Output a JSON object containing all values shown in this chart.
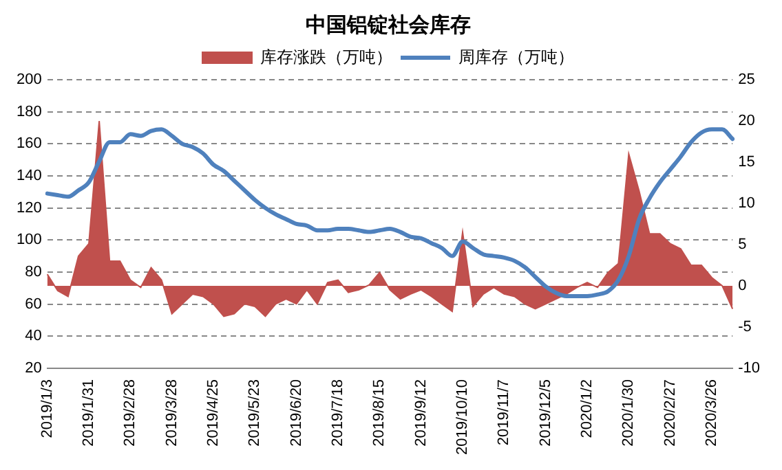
{
  "chart_data": {
    "type": "line",
    "title": "中国铝锭社会库存",
    "categories": [
      "2019/1/3",
      null,
      null,
      null,
      "2019/1/31",
      null,
      null,
      null,
      "2019/2/28",
      null,
      null,
      null,
      "2019/3/28",
      null,
      null,
      null,
      "2019/4/25",
      null,
      null,
      null,
      "2019/5/23",
      null,
      null,
      null,
      "2019/6/20",
      null,
      null,
      null,
      "2019/7/18",
      null,
      null,
      null,
      "2019/8/15",
      null,
      null,
      null,
      "2019/9/12",
      null,
      null,
      null,
      "2019/10/10",
      null,
      null,
      null,
      "2019/11/7",
      null,
      null,
      null,
      "2019/12/5",
      null,
      null,
      null,
      "2020/1/2",
      null,
      null,
      null,
      "2020/1/30",
      null,
      null,
      null,
      "2020/2/27",
      null,
      null,
      null,
      "2020/3/26",
      null,
      null
    ],
    "series": [
      {
        "name": "库存涨跌（万吨）",
        "type": "area",
        "axis": "y2",
        "color": "#c0504d",
        "values": [
          1.4,
          -0.6,
          -1.3,
          3.6,
          5.1,
          20,
          3,
          3,
          0.7,
          -0.2,
          2.2,
          0.7,
          -3.4,
          -2.2,
          -1,
          -1.3,
          -2.2,
          -3.7,
          -3.4,
          -2.2,
          -2.5,
          -3.7,
          -2.2,
          -1.6,
          -2.2,
          -0.5,
          -2.2,
          0.4,
          0.7,
          -0.8,
          -0.5,
          0.1,
          1.6,
          -0.5,
          -1.6,
          -1,
          -0.5,
          -1.3,
          -2.2,
          -3.1,
          6.5,
          -2.5,
          -1,
          -0.2,
          -1,
          -1.3,
          -2.2,
          -2.8,
          -2.2,
          -1.6,
          -1,
          -0.2,
          0.4,
          -0.2,
          1.6,
          2.7,
          16,
          11.5,
          6.3,
          6.3,
          5.1,
          4.5,
          2.5,
          2.5,
          1,
          0,
          -2.8
        ]
      },
      {
        "name": "周库存（万吨）",
        "type": "line",
        "axis": "y",
        "color": "#4f81bd",
        "values": [
          129,
          128,
          127,
          131,
          136,
          149,
          161,
          161,
          166,
          165,
          168,
          169,
          165,
          160,
          158,
          154,
          147,
          143,
          137,
          131,
          125,
          120,
          116,
          113,
          110,
          109,
          106,
          106,
          107,
          107,
          106,
          105,
          106,
          107,
          105,
          102,
          101,
          98,
          95,
          90,
          99,
          95,
          91,
          90,
          89,
          87,
          83,
          77,
          71,
          67,
          65,
          65,
          65,
          66,
          68,
          75,
          90,
          113,
          126,
          136,
          144,
          152,
          161,
          167,
          169,
          169,
          163
        ]
      }
    ],
    "ylim": [
      20,
      200
    ],
    "yticks": [
      20,
      40,
      60,
      80,
      100,
      120,
      140,
      160,
      180,
      200
    ],
    "y2lim": [
      -10,
      25
    ],
    "y2ticks": [
      -10,
      -5,
      0,
      5,
      10,
      15,
      20,
      25
    ],
    "grid": "y",
    "legend": "top",
    "marker": "none",
    "line_style": "solid"
  }
}
